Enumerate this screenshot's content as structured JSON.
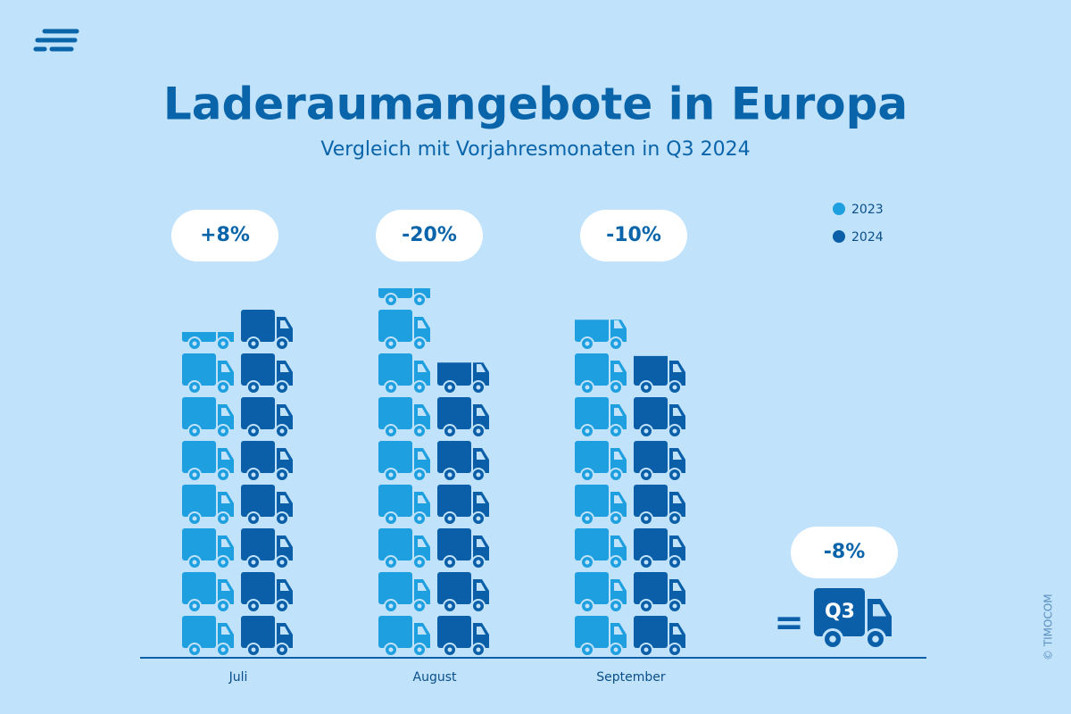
{
  "chart_data": {
    "type": "pictogram-bar",
    "title": "Laderaumangebote in Europa",
    "subtitle": "Vergleich mit Vorjahresmonaten in Q3 2024",
    "categories": [
      "Juli",
      "August",
      "September"
    ],
    "series": [
      {
        "name": "2023",
        "color": "#1e9fe0",
        "values": [
          7.45,
          8.45,
          7.73
        ]
      },
      {
        "name": "2024",
        "color": "#0a5fa8",
        "values": [
          8.0,
          6.75,
          6.9
        ]
      }
    ],
    "changes": [
      "+8%",
      "-20%",
      "-10%"
    ],
    "summary": {
      "label": "Q3",
      "change": "-8%"
    },
    "credit": "© TIMOCOM"
  }
}
